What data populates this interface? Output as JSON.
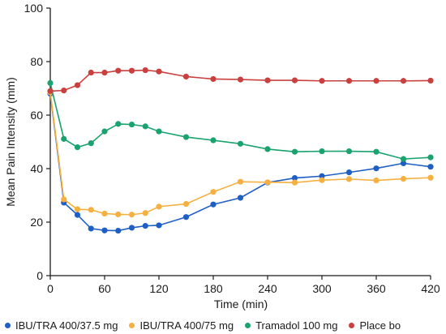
{
  "chart_data": {
    "type": "line",
    "xlabel": "Time (min)",
    "ylabel": "Mean Pain Intensity (mm)",
    "xlim": [
      0,
      420
    ],
    "ylim": [
      0,
      100
    ],
    "x_ticks": [
      0,
      60,
      120,
      180,
      240,
      300,
      360,
      420
    ],
    "y_ticks": [
      0,
      20,
      40,
      60,
      80,
      100
    ],
    "grid": false,
    "legend_position": "bottom",
    "series": [
      {
        "name": "IBU/TRA 400/37.5 mg",
        "color": "#1f5fc4",
        "x": [
          0,
          15,
          30,
          45,
          60,
          75,
          90,
          105,
          120,
          150,
          180,
          210,
          240,
          270,
          300,
          330,
          360,
          390,
          420
        ],
        "y": [
          68,
          27.3,
          22.7,
          17.6,
          16.9,
          16.8,
          17.9,
          18.6,
          18.8,
          21.9,
          26.6,
          29.1,
          34.8,
          36.5,
          37.2,
          38.6,
          40.1,
          42.0,
          40.7
        ]
      },
      {
        "name": "IBU/TRA 400/75 mg",
        "color": "#f5b041",
        "x": [
          0,
          15,
          30,
          45,
          60,
          75,
          90,
          105,
          120,
          150,
          180,
          210,
          240,
          270,
          300,
          330,
          360,
          390,
          420
        ],
        "y": [
          68.5,
          28.5,
          24.8,
          24.6,
          23.2,
          22.9,
          22.8,
          23.4,
          25.8,
          26.8,
          31.3,
          35.1,
          34.9,
          34.8,
          35.7,
          36.1,
          35.6,
          36.2,
          36.6
        ]
      },
      {
        "name": "Tramadol 100 mg",
        "color": "#1aa36f",
        "x": [
          0,
          15,
          30,
          45,
          60,
          75,
          90,
          105,
          120,
          150,
          180,
          210,
          240,
          270,
          300,
          330,
          360,
          390,
          420
        ],
        "y": [
          72,
          51.1,
          48.0,
          49.5,
          53.9,
          56.7,
          56.5,
          55.8,
          53.9,
          51.8,
          50.6,
          49.3,
          47.3,
          46.3,
          46.5,
          46.5,
          46.3,
          43.6,
          44.2
        ]
      },
      {
        "name": "Place bo",
        "color": "#c9403e",
        "x": [
          0,
          15,
          30,
          45,
          60,
          75,
          90,
          105,
          120,
          150,
          180,
          210,
          240,
          270,
          300,
          330,
          360,
          390,
          420
        ],
        "y": [
          69,
          69.2,
          71.2,
          75.9,
          75.9,
          76.6,
          76.6,
          76.8,
          76.3,
          74.4,
          73.5,
          73.3,
          73.0,
          73.0,
          72.8,
          72.8,
          72.8,
          72.8,
          72.9
        ]
      }
    ]
  }
}
